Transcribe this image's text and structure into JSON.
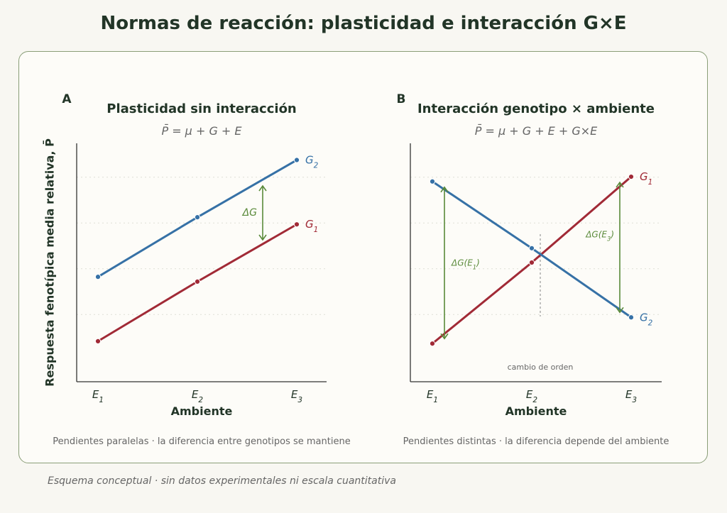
{
  "title": "Normas de reacción: plasticidad e interacción G×E",
  "ylabel": "Respuesta fenotípica media relativa, P̄",
  "footnote": "Esquema conceptual · sin datos experimentales ni escala cuantitativa",
  "colors": {
    "G1": "#a12a36",
    "G2": "#3671a6",
    "delta": "#5a8a3a",
    "ink": "#223527"
  },
  "chart_data": [
    {
      "type": "line",
      "panel_letter": "A",
      "title": "Plasticidad sin interacción",
      "subtitle": "P̄ = μ + G + E",
      "xlabel": "Ambiente",
      "categories": [
        "E1",
        "E2",
        "E3"
      ],
      "ylim": [
        0,
        1
      ],
      "grid": true,
      "series": [
        {
          "name": "G1",
          "values": [
            0.17,
            0.42,
            0.66
          ]
        },
        {
          "name": "G2",
          "values": [
            0.44,
            0.69,
            0.93
          ]
        }
      ],
      "annotations": [
        {
          "text": "ΔG",
          "category": "E3"
        }
      ],
      "caption": "Pendientes paralelas · la diferencia entre genotipos se mantiene"
    },
    {
      "type": "line",
      "panel_letter": "B",
      "title": "Interacción genotipo × ambiente",
      "subtitle": "P̄ = μ + G + E + G×E",
      "xlabel": "Ambiente",
      "categories": [
        "E1",
        "E2",
        "E3"
      ],
      "ylim": [
        0,
        1
      ],
      "grid": true,
      "series": [
        {
          "name": "G1",
          "values": [
            0.16,
            0.5,
            0.86
          ]
        },
        {
          "name": "G2",
          "values": [
            0.84,
            0.56,
            0.27
          ]
        }
      ],
      "annotations": [
        {
          "text": "ΔG(E1)",
          "category": "E1"
        },
        {
          "text": "ΔG(E3)",
          "category": "E3"
        },
        {
          "text": "cambio de orden",
          "category": "E2"
        }
      ],
      "caption": "Pendientes distintas · la diferencia depende del ambiente"
    }
  ]
}
